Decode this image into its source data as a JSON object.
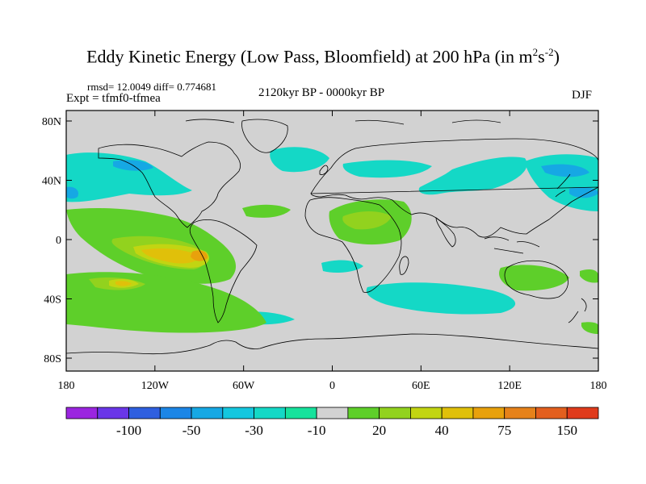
{
  "title": {
    "text": "Eddy Kinetic Energy (Low Pass, Bloomfield) at 200 hPa (in m",
    "sup1": "2",
    "mid": "s",
    "sup2": "-2",
    "end": ")"
  },
  "stats": "rmsd= 12.0049 diff= 0.774681",
  "experiment": "Expt = tfmf0-tfmea",
  "period": "2120kyr BP - 0000kyr BP",
  "season": "DJF",
  "lat_ticks": [
    "80N",
    "40N",
    "0",
    "40S",
    "80S"
  ],
  "lon_ticks": [
    "180",
    "120W",
    "60W",
    "0",
    "60E",
    "120E",
    "180"
  ],
  "colorbar": {
    "labels": [
      "-100",
      "-50",
      "-30",
      "-10",
      "20",
      "40",
      "75",
      "150"
    ],
    "colors": [
      "#9b25e0",
      "#6a36e8",
      "#2f5fe0",
      "#1c86e6",
      "#16a8e4",
      "#14c7df",
      "#14d8c6",
      "#16e29c",
      "#d2d2d2",
      "#5ecf2a",
      "#92d21e",
      "#c2d512",
      "#e0c00a",
      "#e8a10c",
      "#e6821a",
      "#e35f1e",
      "#e03b1c"
    ]
  },
  "map": {
    "background": "#d2d2d2",
    "coast_color": "#000000"
  }
}
